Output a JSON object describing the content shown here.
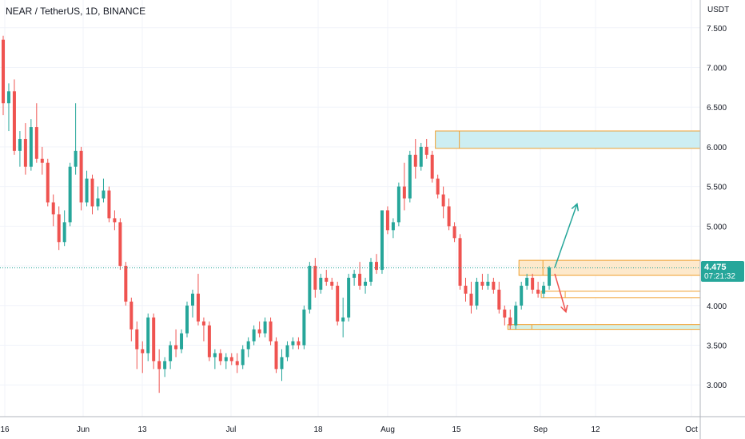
{
  "chart": {
    "title": "NEAR / TetherUS, 1D, BINANCE",
    "currency": "USDT",
    "last_price": "4.475",
    "countdown": "07:21:32"
  },
  "chart_data": {
    "type": "candlestick",
    "ylim": [
      2.6,
      7.85
    ],
    "y_ticks": [
      "3.000",
      "3.500",
      "4.000",
      "4.500",
      "5.000",
      "5.500",
      "6.000",
      "6.500",
      "7.000",
      "7.500"
    ],
    "x_ticks": [
      "16",
      "Jun",
      "13",
      "Jul",
      "18",
      "Aug",
      "15",
      "Sep",
      "12",
      "Oct"
    ],
    "last_price_value": 4.475,
    "colors": {
      "up": "#26a69a",
      "down": "#ef5350"
    },
    "candles": [
      {
        "o": 7.35,
        "h": 7.4,
        "l": 6.4,
        "c": 6.55
      },
      {
        "o": 6.55,
        "h": 6.8,
        "l": 6.2,
        "c": 6.7
      },
      {
        "o": 6.7,
        "h": 6.85,
        "l": 5.9,
        "c": 5.95
      },
      {
        "o": 5.95,
        "h": 6.2,
        "l": 5.75,
        "c": 6.1
      },
      {
        "o": 6.1,
        "h": 6.3,
        "l": 5.65,
        "c": 5.75
      },
      {
        "o": 5.75,
        "h": 6.35,
        "l": 5.7,
        "c": 6.25
      },
      {
        "o": 6.25,
        "h": 6.55,
        "l": 5.8,
        "c": 5.85
      },
      {
        "o": 5.85,
        "h": 6.0,
        "l": 5.65,
        "c": 5.8
      },
      {
        "o": 5.8,
        "h": 5.85,
        "l": 5.25,
        "c": 5.3
      },
      {
        "o": 5.3,
        "h": 5.4,
        "l": 5.0,
        "c": 5.15
      },
      {
        "o": 5.15,
        "h": 5.25,
        "l": 4.7,
        "c": 4.8
      },
      {
        "o": 4.8,
        "h": 5.2,
        "l": 4.75,
        "c": 5.05
      },
      {
        "o": 5.05,
        "h": 5.8,
        "l": 5.0,
        "c": 5.75
      },
      {
        "o": 5.75,
        "h": 6.55,
        "l": 5.65,
        "c": 5.95
      },
      {
        "o": 5.95,
        "h": 6.0,
        "l": 5.2,
        "c": 5.3
      },
      {
        "o": 5.3,
        "h": 5.7,
        "l": 5.25,
        "c": 5.6
      },
      {
        "o": 5.6,
        "h": 5.65,
        "l": 5.15,
        "c": 5.25
      },
      {
        "o": 5.25,
        "h": 5.5,
        "l": 5.2,
        "c": 5.35
      },
      {
        "o": 5.35,
        "h": 5.6,
        "l": 5.3,
        "c": 5.45
      },
      {
        "o": 5.45,
        "h": 5.5,
        "l": 5.05,
        "c": 5.1
      },
      {
        "o": 5.1,
        "h": 5.2,
        "l": 4.95,
        "c": 5.05
      },
      {
        "o": 5.05,
        "h": 5.1,
        "l": 4.45,
        "c": 4.5
      },
      {
        "o": 4.5,
        "h": 4.55,
        "l": 4.0,
        "c": 4.05
      },
      {
        "o": 4.05,
        "h": 4.1,
        "l": 3.55,
        "c": 3.7
      },
      {
        "o": 3.7,
        "h": 3.8,
        "l": 3.2,
        "c": 3.45
      },
      {
        "o": 3.45,
        "h": 3.55,
        "l": 3.15,
        "c": 3.4
      },
      {
        "o": 3.4,
        "h": 3.9,
        "l": 3.3,
        "c": 3.85
      },
      {
        "o": 3.85,
        "h": 3.9,
        "l": 3.2,
        "c": 3.3
      },
      {
        "o": 3.3,
        "h": 3.45,
        "l": 2.9,
        "c": 3.2
      },
      {
        "o": 3.2,
        "h": 3.35,
        "l": 3.1,
        "c": 3.3
      },
      {
        "o": 3.3,
        "h": 3.55,
        "l": 3.2,
        "c": 3.5
      },
      {
        "o": 3.5,
        "h": 3.7,
        "l": 3.35,
        "c": 3.45
      },
      {
        "o": 3.45,
        "h": 3.7,
        "l": 3.4,
        "c": 3.65
      },
      {
        "o": 3.65,
        "h": 4.05,
        "l": 3.6,
        "c": 4.0
      },
      {
        "o": 4.0,
        "h": 4.2,
        "l": 3.85,
        "c": 4.15
      },
      {
        "o": 4.15,
        "h": 4.4,
        "l": 3.75,
        "c": 3.8
      },
      {
        "o": 3.8,
        "h": 3.85,
        "l": 3.55,
        "c": 3.75
      },
      {
        "o": 3.75,
        "h": 3.8,
        "l": 3.3,
        "c": 3.35
      },
      {
        "o": 3.35,
        "h": 3.45,
        "l": 3.2,
        "c": 3.4
      },
      {
        "o": 3.4,
        "h": 3.45,
        "l": 3.25,
        "c": 3.3
      },
      {
        "o": 3.3,
        "h": 3.4,
        "l": 3.2,
        "c": 3.35
      },
      {
        "o": 3.35,
        "h": 3.4,
        "l": 3.25,
        "c": 3.3
      },
      {
        "o": 3.3,
        "h": 3.4,
        "l": 3.15,
        "c": 3.25
      },
      {
        "o": 3.25,
        "h": 3.5,
        "l": 3.2,
        "c": 3.45
      },
      {
        "o": 3.45,
        "h": 3.6,
        "l": 3.35,
        "c": 3.55
      },
      {
        "o": 3.55,
        "h": 3.75,
        "l": 3.5,
        "c": 3.7
      },
      {
        "o": 3.7,
        "h": 3.8,
        "l": 3.6,
        "c": 3.65
      },
      {
        "o": 3.65,
        "h": 3.85,
        "l": 3.6,
        "c": 3.8
      },
      {
        "o": 3.8,
        "h": 3.85,
        "l": 3.5,
        "c": 3.55
      },
      {
        "o": 3.55,
        "h": 3.6,
        "l": 3.15,
        "c": 3.2
      },
      {
        "o": 3.2,
        "h": 3.45,
        "l": 3.05,
        "c": 3.35
      },
      {
        "o": 3.35,
        "h": 3.55,
        "l": 3.3,
        "c": 3.5
      },
      {
        "o": 3.5,
        "h": 3.6,
        "l": 3.45,
        "c": 3.55
      },
      {
        "o": 3.55,
        "h": 3.6,
        "l": 3.45,
        "c": 3.5
      },
      {
        "o": 3.5,
        "h": 4.0,
        "l": 3.45,
        "c": 3.95
      },
      {
        "o": 3.95,
        "h": 4.55,
        "l": 3.9,
        "c": 4.5
      },
      {
        "o": 4.5,
        "h": 4.6,
        "l": 4.1,
        "c": 4.2
      },
      {
        "o": 4.2,
        "h": 4.4,
        "l": 4.15,
        "c": 4.35
      },
      {
        "o": 4.35,
        "h": 4.45,
        "l": 4.25,
        "c": 4.3
      },
      {
        "o": 4.3,
        "h": 4.35,
        "l": 4.2,
        "c": 4.25
      },
      {
        "o": 4.25,
        "h": 4.3,
        "l": 3.75,
        "c": 3.8
      },
      {
        "o": 3.8,
        "h": 4.1,
        "l": 3.6,
        "c": 3.85
      },
      {
        "o": 3.85,
        "h": 4.4,
        "l": 3.8,
        "c": 4.35
      },
      {
        "o": 4.35,
        "h": 4.45,
        "l": 4.25,
        "c": 4.4
      },
      {
        "o": 4.4,
        "h": 4.55,
        "l": 4.2,
        "c": 4.25
      },
      {
        "o": 4.25,
        "h": 4.35,
        "l": 4.15,
        "c": 4.3
      },
      {
        "o": 4.3,
        "h": 4.6,
        "l": 4.25,
        "c": 4.55
      },
      {
        "o": 4.55,
        "h": 4.65,
        "l": 4.4,
        "c": 4.45
      },
      {
        "o": 4.45,
        "h": 5.2,
        "l": 4.4,
        "c": 5.2
      },
      {
        "o": 5.2,
        "h": 5.25,
        "l": 4.9,
        "c": 4.95
      },
      {
        "o": 4.95,
        "h": 5.1,
        "l": 4.85,
        "c": 5.05
      },
      {
        "o": 5.05,
        "h": 5.55,
        "l": 5.0,
        "c": 5.5
      },
      {
        "o": 5.5,
        "h": 5.8,
        "l": 5.2,
        "c": 5.35
      },
      {
        "o": 5.35,
        "h": 5.95,
        "l": 5.3,
        "c": 5.9
      },
      {
        "o": 5.9,
        "h": 6.1,
        "l": 5.6,
        "c": 5.75
      },
      {
        "o": 5.75,
        "h": 6.05,
        "l": 5.7,
        "c": 6.0
      },
      {
        "o": 6.0,
        "h": 6.1,
        "l": 5.85,
        "c": 5.9
      },
      {
        "o": 5.9,
        "h": 5.95,
        "l": 5.55,
        "c": 5.6
      },
      {
        "o": 5.6,
        "h": 5.65,
        "l": 5.35,
        "c": 5.4
      },
      {
        "o": 5.4,
        "h": 5.5,
        "l": 5.1,
        "c": 5.25
      },
      {
        "o": 5.25,
        "h": 5.35,
        "l": 4.95,
        "c": 5.0
      },
      {
        "o": 5.0,
        "h": 5.05,
        "l": 4.8,
        "c": 4.85
      },
      {
        "o": 4.85,
        "h": 4.9,
        "l": 4.2,
        "c": 4.25
      },
      {
        "o": 4.25,
        "h": 4.35,
        "l": 4.05,
        "c": 4.15
      },
      {
        "o": 4.15,
        "h": 4.3,
        "l": 3.9,
        "c": 4.0
      },
      {
        "o": 4.0,
        "h": 4.35,
        "l": 3.95,
        "c": 4.3
      },
      {
        "o": 4.3,
        "h": 4.4,
        "l": 4.2,
        "c": 4.25
      },
      {
        "o": 4.25,
        "h": 4.4,
        "l": 4.2,
        "c": 4.3
      },
      {
        "o": 4.3,
        "h": 4.35,
        "l": 4.15,
        "c": 4.2
      },
      {
        "o": 4.2,
        "h": 4.3,
        "l": 3.9,
        "c": 3.95
      },
      {
        "o": 3.95,
        "h": 4.0,
        "l": 3.75,
        "c": 3.85
      },
      {
        "o": 3.85,
        "h": 3.95,
        "l": 3.7,
        "c": 3.75
      },
      {
        "o": 3.75,
        "h": 4.05,
        "l": 3.7,
        "c": 4.0
      },
      {
        "o": 4.0,
        "h": 4.3,
        "l": 3.95,
        "c": 4.25
      },
      {
        "o": 4.25,
        "h": 4.4,
        "l": 4.2,
        "c": 4.35
      },
      {
        "o": 4.35,
        "h": 4.4,
        "l": 4.15,
        "c": 4.2
      },
      {
        "o": 4.2,
        "h": 4.3,
        "l": 4.1,
        "c": 4.15
      },
      {
        "o": 4.15,
        "h": 4.3,
        "l": 4.1,
        "c": 4.25
      },
      {
        "o": 4.25,
        "h": 4.5,
        "l": 4.2,
        "c": 4.48
      }
    ],
    "zones": [
      {
        "id": "resistance-zone",
        "top": 6.2,
        "bottom": 5.98,
        "from_index": 78,
        "to_index": "end",
        "fill": "#cdeef2"
      },
      {
        "id": "current-zone",
        "top": 4.57,
        "bottom": 4.38,
        "from_index": 93,
        "to_index": "end",
        "fill": "#fde9cc"
      },
      {
        "id": "mid-zone",
        "top": 4.18,
        "bottom": 4.1,
        "from_index": 97,
        "to_index": "end",
        "fill": "#ffffff"
      },
      {
        "id": "support-zone",
        "top": 3.76,
        "bottom": 3.7,
        "from_index": 91,
        "to_index": "end",
        "fill": "#d8f0e4"
      }
    ],
    "arrows": [
      {
        "id": "up-arrow",
        "from": [
          99,
          4.48
        ],
        "to": [
          103,
          5.28
        ],
        "color": "#26a69a"
      },
      {
        "id": "down-arrow",
        "from": [
          99,
          4.4
        ],
        "to": [
          101,
          3.92
        ],
        "color": "#ef5350"
      }
    ]
  }
}
